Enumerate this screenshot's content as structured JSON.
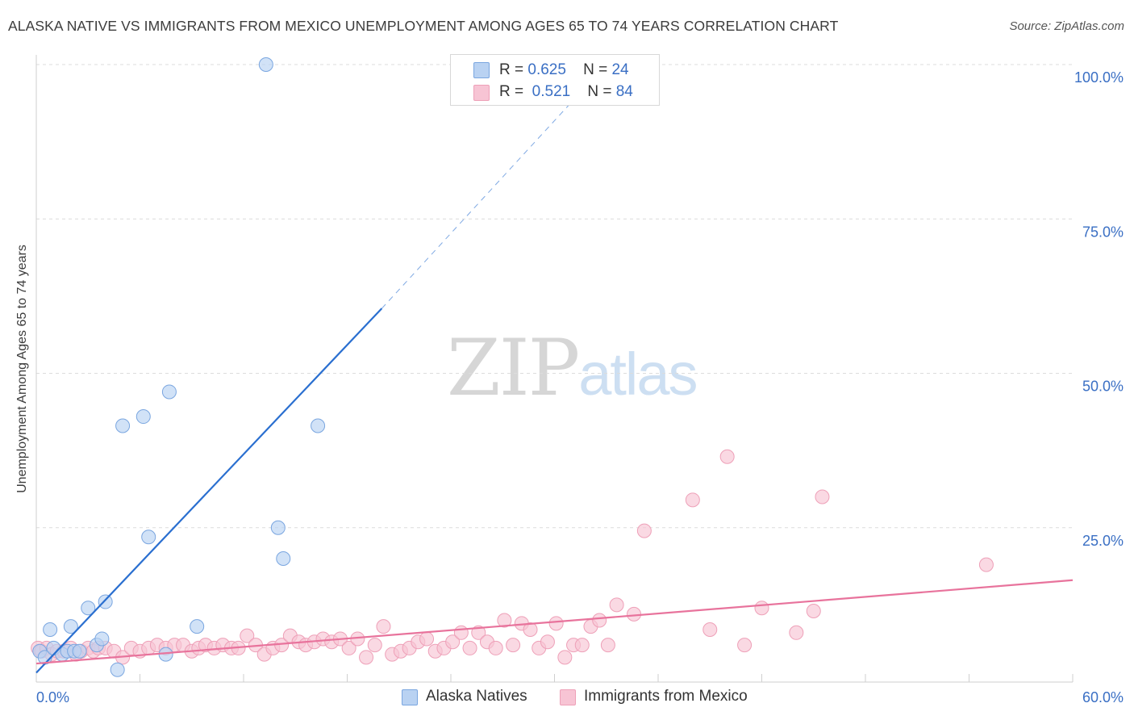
{
  "title": "ALASKA NATIVE VS IMMIGRANTS FROM MEXICO UNEMPLOYMENT AMONG AGES 65 TO 74 YEARS CORRELATION CHART",
  "source": "Source: ZipAtlas.com",
  "watermark": {
    "zip": "ZIP",
    "atlas": "atlas"
  },
  "legend": {
    "r_label": "R =",
    "n_label": "N =",
    "series": [
      {
        "name": "Alaska Natives",
        "r": "0.625",
        "n": "24"
      },
      {
        "name": "Immigrants from Mexico",
        "r": "0.521",
        "n": "84"
      }
    ]
  },
  "colors": {
    "blue_fill": "#b9d2f2",
    "blue_stroke": "#7aa6e0",
    "blue_line": "#2a6fd0",
    "pink_fill": "#f7c4d4",
    "pink_stroke": "#eea0b8",
    "pink_line": "#e8739c",
    "axis_text": "#3a6fc4",
    "grid": "#dcdcdc"
  },
  "chart_data": {
    "type": "scatter",
    "title": "ALASKA NATIVE VS IMMIGRANTS FROM MEXICO UNEMPLOYMENT AMONG AGES 65 TO 74 YEARS CORRELATION CHART",
    "xlabel": "",
    "ylabel": "Unemployment Among Ages 65 to 74 years",
    "xlim": [
      0,
      60
    ],
    "ylim": [
      0,
      100
    ],
    "x_tick_labels": [
      "0.0%",
      "60.0%"
    ],
    "y_ticks": [
      25,
      50,
      75,
      100
    ],
    "y_tick_labels": [
      "25.0%",
      "50.0%",
      "75.0%",
      "100.0%"
    ],
    "series": [
      {
        "name": "Alaska Natives",
        "color": "blue",
        "points": [
          [
            0.2,
            5.0
          ],
          [
            0.5,
            4.0
          ],
          [
            0.8,
            8.5
          ],
          [
            1.0,
            5.5
          ],
          [
            1.5,
            4.5
          ],
          [
            1.8,
            5.0
          ],
          [
            2.0,
            9.0
          ],
          [
            2.2,
            5.0
          ],
          [
            2.5,
            5.0
          ],
          [
            3.0,
            12.0
          ],
          [
            3.5,
            6.0
          ],
          [
            3.8,
            7.0
          ],
          [
            4.0,
            13.0
          ],
          [
            4.7,
            2.0
          ],
          [
            5.0,
            41.5
          ],
          [
            6.2,
            43.0
          ],
          [
            6.5,
            23.5
          ],
          [
            7.5,
            4.5
          ],
          [
            7.7,
            47.0
          ],
          [
            9.3,
            9.0
          ],
          [
            13.3,
            100.0
          ],
          [
            14.0,
            25.0
          ],
          [
            14.3,
            20.0
          ],
          [
            16.3,
            41.5
          ]
        ],
        "trendline": {
          "x": [
            0,
            20
          ],
          "y": [
            1.5,
            60.5
          ],
          "dashed_extension_to": [
            32,
            97
          ]
        }
      },
      {
        "name": "Immigrants from Mexico",
        "color": "pink",
        "points": [
          [
            0.1,
            5.5
          ],
          [
            0.3,
            5.0
          ],
          [
            0.6,
            5.5
          ],
          [
            0.9,
            4.5
          ],
          [
            1.2,
            5.0
          ],
          [
            1.6,
            5.0
          ],
          [
            2.0,
            5.5
          ],
          [
            2.3,
            4.5
          ],
          [
            2.6,
            5.0
          ],
          [
            3.0,
            5.5
          ],
          [
            3.3,
            5.0
          ],
          [
            3.6,
            5.5
          ],
          [
            4.0,
            5.5
          ],
          [
            4.5,
            5.0
          ],
          [
            5.0,
            4.0
          ],
          [
            5.5,
            5.5
          ],
          [
            6.0,
            5.0
          ],
          [
            6.5,
            5.5
          ],
          [
            7.0,
            6.0
          ],
          [
            7.5,
            5.5
          ],
          [
            8.0,
            6.0
          ],
          [
            8.5,
            6.0
          ],
          [
            9.0,
            5.0
          ],
          [
            9.4,
            5.5
          ],
          [
            9.8,
            6.0
          ],
          [
            10.3,
            5.5
          ],
          [
            10.8,
            6.0
          ],
          [
            11.3,
            5.5
          ],
          [
            11.7,
            5.5
          ],
          [
            12.2,
            7.5
          ],
          [
            12.7,
            6.0
          ],
          [
            13.2,
            4.5
          ],
          [
            13.7,
            5.5
          ],
          [
            14.2,
            6.0
          ],
          [
            14.7,
            7.5
          ],
          [
            15.2,
            6.5
          ],
          [
            15.6,
            6.0
          ],
          [
            16.1,
            6.5
          ],
          [
            16.6,
            7.0
          ],
          [
            17.1,
            6.5
          ],
          [
            17.6,
            7.0
          ],
          [
            18.1,
            5.5
          ],
          [
            18.6,
            7.0
          ],
          [
            19.1,
            4.0
          ],
          [
            19.6,
            6.0
          ],
          [
            20.1,
            9.0
          ],
          [
            20.6,
            4.5
          ],
          [
            21.1,
            5.0
          ],
          [
            21.6,
            5.5
          ],
          [
            22.1,
            6.5
          ],
          [
            22.6,
            7.0
          ],
          [
            23.1,
            5.0
          ],
          [
            23.6,
            5.5
          ],
          [
            24.1,
            6.5
          ],
          [
            24.6,
            8.0
          ],
          [
            25.1,
            5.5
          ],
          [
            25.6,
            8.0
          ],
          [
            26.1,
            6.5
          ],
          [
            26.6,
            5.5
          ],
          [
            27.1,
            10.0
          ],
          [
            27.6,
            6.0
          ],
          [
            28.1,
            9.5
          ],
          [
            28.6,
            8.5
          ],
          [
            29.1,
            5.5
          ],
          [
            29.6,
            6.5
          ],
          [
            30.1,
            9.5
          ],
          [
            30.6,
            4.0
          ],
          [
            31.1,
            6.0
          ],
          [
            31.6,
            6.0
          ],
          [
            32.1,
            9.0
          ],
          [
            32.6,
            10.0
          ],
          [
            33.1,
            6.0
          ],
          [
            33.6,
            12.5
          ],
          [
            34.6,
            11.0
          ],
          [
            35.2,
            24.5
          ],
          [
            38.0,
            29.5
          ],
          [
            39.0,
            8.5
          ],
          [
            40.0,
            36.5
          ],
          [
            41.0,
            6.0
          ],
          [
            42.0,
            12.0
          ],
          [
            44.0,
            8.0
          ],
          [
            45.0,
            11.5
          ],
          [
            45.5,
            30.0
          ],
          [
            55.0,
            19.0
          ]
        ],
        "trendline": {
          "x": [
            0,
            60
          ],
          "y": [
            3.0,
            16.5
          ]
        }
      }
    ]
  }
}
